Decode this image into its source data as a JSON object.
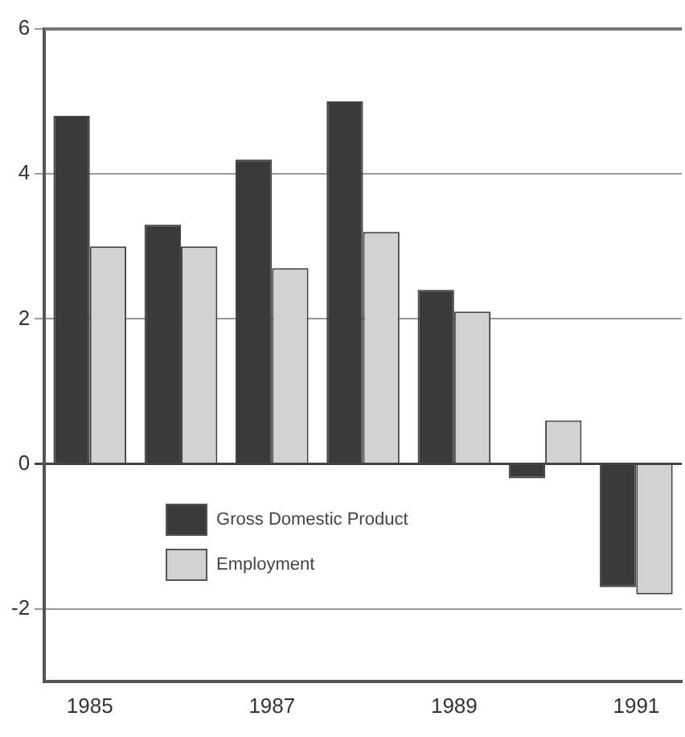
{
  "chart_data": {
    "type": "bar",
    "categories": [
      "1985",
      null,
      "1987",
      null,
      "1989",
      null,
      "1991"
    ],
    "series": [
      {
        "name": "Gross Domestic Product",
        "color": "#3a3a3a",
        "values": [
          4.8,
          3.3,
          4.2,
          5.0,
          2.4,
          -0.2,
          -1.7
        ]
      },
      {
        "name": "Employment",
        "color": "#d0d3d0",
        "values": [
          3.0,
          3.0,
          2.7,
          3.2,
          2.1,
          0.6,
          -1.8
        ]
      }
    ],
    "ylim": [
      -3,
      6
    ],
    "yticks": [
      -2,
      0,
      2,
      4,
      6
    ],
    "grid": "y",
    "legend": "bottom left"
  }
}
